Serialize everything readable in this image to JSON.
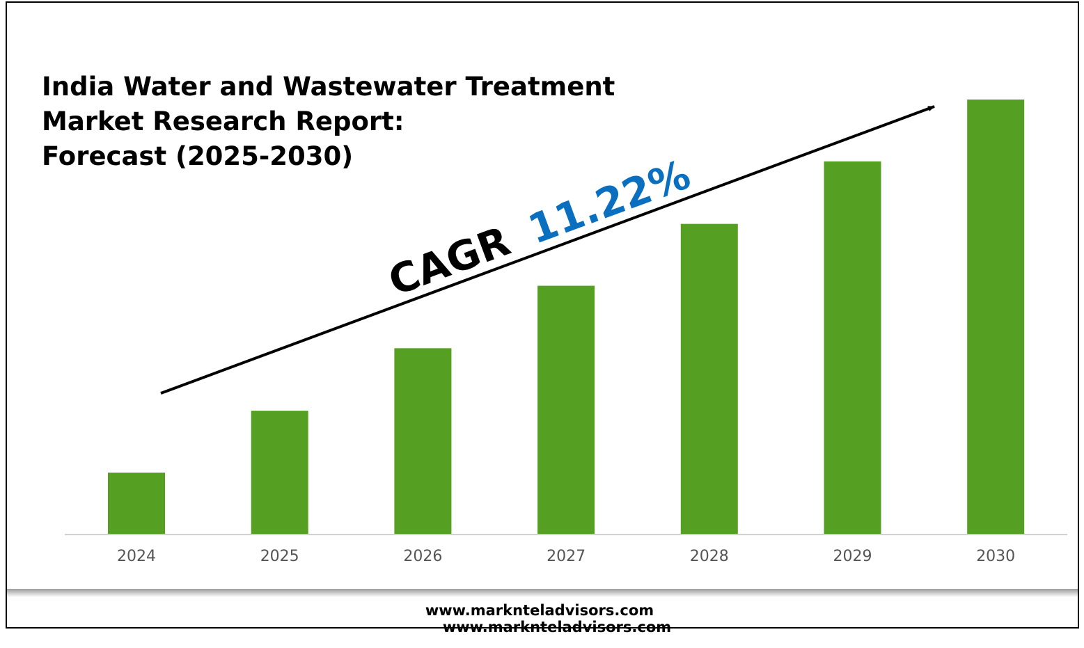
{
  "chart_data": {
    "type": "bar",
    "title_lines": [
      "India Water and Wastewater Treatment",
      "Market Research Report:",
      "Forecast (2025-2030)"
    ],
    "categories": [
      "2024",
      "2025",
      "2026",
      "2027",
      "2028",
      "2029",
      "2030"
    ],
    "values": [
      1.0,
      2.01,
      3.03,
      4.05,
      5.06,
      6.08,
      7.09
    ],
    "ylim": [
      0,
      7.09
    ],
    "xlabel": "",
    "ylabel": "",
    "grid": false,
    "bar_color": "#55a022",
    "annotation": {
      "cagr_label": "CAGR",
      "cagr_value": "11.22%",
      "cagr_value_color": "#0b6fc0",
      "trend_arrow": "up-right"
    }
  },
  "footer": {
    "website": "www.marknteladvisors.com",
    "website_duplicate": "www.marknteladvisors.com"
  }
}
